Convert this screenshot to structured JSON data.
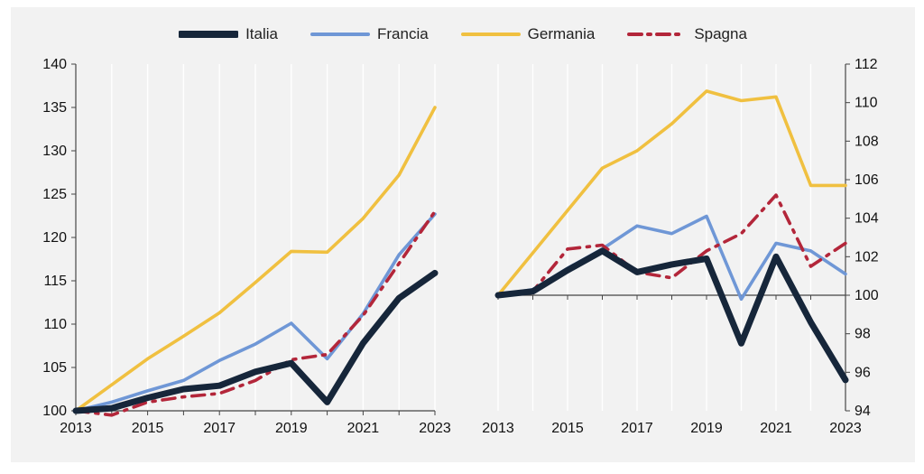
{
  "legend": [
    {
      "name": "Italia",
      "color": "#16263a",
      "style": "solid-thick"
    },
    {
      "name": "Francia",
      "color": "#6f97d6",
      "style": "solid"
    },
    {
      "name": "Germania",
      "color": "#f0c040",
      "style": "solid"
    },
    {
      "name": "Spagna",
      "color": "#b3263a",
      "style": "dash-dot"
    }
  ],
  "chart_data": [
    {
      "type": "line",
      "title": "",
      "xlabel": "",
      "ylabel": "",
      "x": [
        2013,
        2014,
        2015,
        2016,
        2017,
        2018,
        2019,
        2020,
        2021,
        2022,
        2023
      ],
      "xticks": [
        "2013",
        "2015",
        "2017",
        "2019",
        "2021",
        "2023"
      ],
      "yticks": [
        "100",
        "105",
        "110",
        "115",
        "120",
        "125",
        "130",
        "135",
        "140"
      ],
      "ylim": [
        100,
        140
      ],
      "y_axis_side": "left",
      "grid": "vertical",
      "series": [
        {
          "name": "Italia",
          "values": [
            100,
            100.3,
            101.5,
            102.5,
            102.9,
            104.5,
            105.5,
            101.0,
            107.8,
            113.0,
            115.9
          ]
        },
        {
          "name": "Francia",
          "values": [
            100,
            101,
            102.3,
            103.5,
            105.8,
            107.7,
            110.1,
            106.0,
            111.2,
            118.0,
            122.7
          ]
        },
        {
          "name": "Germania",
          "values": [
            100,
            103,
            106,
            108.6,
            111.3,
            114.8,
            118.4,
            118.3,
            122.2,
            127.2,
            135.0
          ]
        },
        {
          "name": "Spagna",
          "values": [
            100,
            99.5,
            101.0,
            101.6,
            102.0,
            103.5,
            105.9,
            106.5,
            111.0,
            117.0,
            123.0
          ]
        }
      ]
    },
    {
      "type": "line",
      "title": "",
      "xlabel": "",
      "ylabel": "",
      "x": [
        2013,
        2014,
        2015,
        2016,
        2017,
        2018,
        2019,
        2020,
        2021,
        2022,
        2023
      ],
      "xticks": [
        "2013",
        "2015",
        "2017",
        "2019",
        "2021",
        "2023"
      ],
      "yticks": [
        "94",
        "96",
        "98",
        "100",
        "102",
        "104",
        "106",
        "108",
        "110",
        "112"
      ],
      "ylim": [
        94,
        112
      ],
      "y_axis_side": "right",
      "baseline": 100,
      "grid": "vertical",
      "series": [
        {
          "name": "Italia",
          "values": [
            100,
            100.2,
            101.3,
            102.3,
            101.2,
            101.6,
            101.9,
            97.5,
            102.0,
            98.6,
            95.6
          ]
        },
        {
          "name": "Francia",
          "values": [
            100,
            100.3,
            101.4,
            102.4,
            103.6,
            103.2,
            104.1,
            99.8,
            102.7,
            102.3,
            101.1
          ]
        },
        {
          "name": "Germania",
          "values": [
            100,
            102.2,
            104.4,
            106.6,
            107.5,
            108.9,
            110.6,
            110.1,
            110.3,
            105.7,
            105.7
          ]
        },
        {
          "name": "Spagna",
          "values": [
            100,
            100.2,
            102.4,
            102.6,
            101.2,
            100.9,
            102.3,
            103.2,
            105.2,
            101.5,
            102.7
          ]
        }
      ]
    }
  ]
}
